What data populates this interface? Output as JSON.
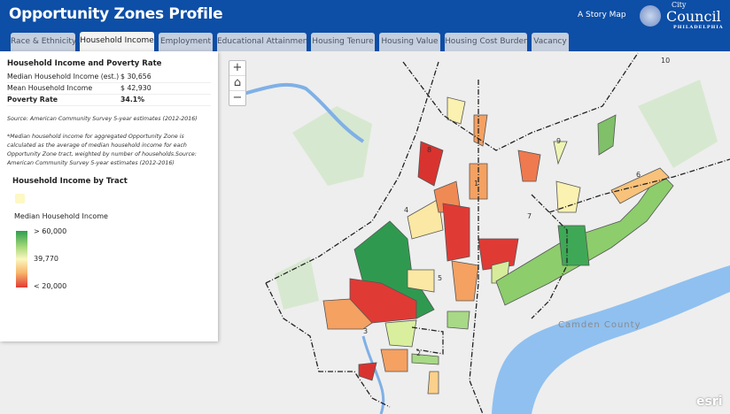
{
  "header": {
    "title": "Opportunity Zones Profile",
    "story_map": "A Story Map",
    "logo": {
      "line1": "City",
      "line2": "Council",
      "line3": "PHILADELPHIA"
    }
  },
  "tabs": [
    {
      "label": "Race & Ethnicity",
      "active": false
    },
    {
      "label": "Household Income",
      "active": true
    },
    {
      "label": "Employment",
      "active": false
    },
    {
      "label": "Educational Attainment",
      "active": false
    },
    {
      "label": "Housing Tenure",
      "active": false
    },
    {
      "label": "Housing Value",
      "active": false
    },
    {
      "label": "Housing Cost Burden",
      "active": false
    },
    {
      "label": "Vacancy",
      "active": false
    }
  ],
  "panel": {
    "heading": "Household Income and Poverty Rate",
    "rows": [
      {
        "label": "Median Household Income (est.)",
        "value": "$ 30,656"
      },
      {
        "label": "Mean Household Income",
        "value": "$ 42,930"
      },
      {
        "label": "Poverty Rate",
        "value": "34.1%"
      }
    ],
    "source": "Source: American Community Survey 5-year estimates (2012-2016)",
    "footnote": "*Median household income for aggregated Opportunity Zone is calculated as the average of median household income for each Opportunity Zone tract, weighted by number of households.Source: American Community Survey 5-year estimates (2012-2016)"
  },
  "legend": {
    "title": "Household Income by Tract",
    "subtitle": "Median Household Income",
    "high": "> 60,000",
    "mid": "39,770",
    "low": "< 20,000",
    "colors": {
      "high": "#2e9e4e",
      "mid": "#fbf7c0",
      "low": "#e03a35"
    }
  },
  "map": {
    "zone_labels": [
      "1",
      "2",
      "3",
      "4",
      "5",
      "6",
      "7",
      "8",
      "9",
      "10"
    ],
    "place_label": "Camden County",
    "attribution": "esri",
    "controls": {
      "zoom_in": "+",
      "home": "⌂",
      "zoom_out": "−"
    }
  }
}
